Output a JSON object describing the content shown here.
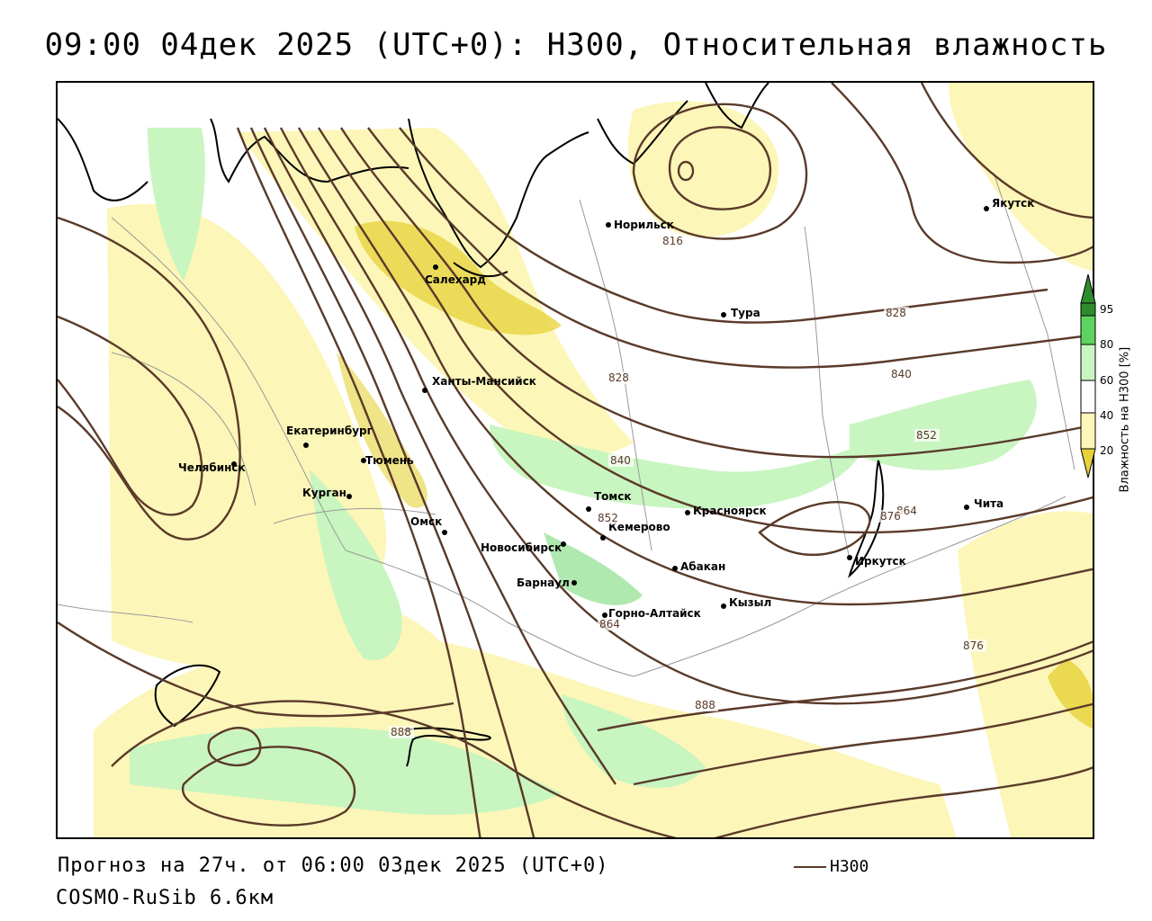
{
  "title": "09:00 04дек 2025 (UTC+0): H300, Относительная влажность",
  "footer": {
    "forecast": "Прогноз на 27ч. от 06:00 03дек 2025 (UTC+0)",
    "model": "COSMO-RuSib 6.6км",
    "legend_label": "H300"
  },
  "colorbar": {
    "title": "Влажность на H300 [%]",
    "ticks": [
      "95",
      "80",
      "60",
      "40",
      "20"
    ],
    "colors": {
      "c95": "#2e8b2e",
      "c80": "#5fd35f",
      "c60": "#c8f5c0",
      "c50": "#ffffff",
      "c40": "#fcf6b8",
      "c20": "#e6d238"
    }
  },
  "cities": [
    {
      "name": "Норильск"
    },
    {
      "name": "Якутск"
    },
    {
      "name": "Салехард"
    },
    {
      "name": "Тура"
    },
    {
      "name": "Ханты-Мансийск"
    },
    {
      "name": "Екатеринбург"
    },
    {
      "name": "Тюмень"
    },
    {
      "name": "Челябинск"
    },
    {
      "name": "Курган"
    },
    {
      "name": "Омск"
    },
    {
      "name": "Томск"
    },
    {
      "name": "Красноярск"
    },
    {
      "name": "Новосибирск"
    },
    {
      "name": "Кемерово"
    },
    {
      "name": "Барнаул"
    },
    {
      "name": "Абакан"
    },
    {
      "name": "Горно-Алтайск"
    },
    {
      "name": "Кызыл"
    },
    {
      "name": "Иркутск"
    },
    {
      "name": "Чита"
    }
  ],
  "contour_labels": [
    "816",
    "828",
    "828",
    "840",
    "840",
    "852",
    "852",
    "864",
    "864",
    "876",
    "876",
    "888",
    "888"
  ]
}
